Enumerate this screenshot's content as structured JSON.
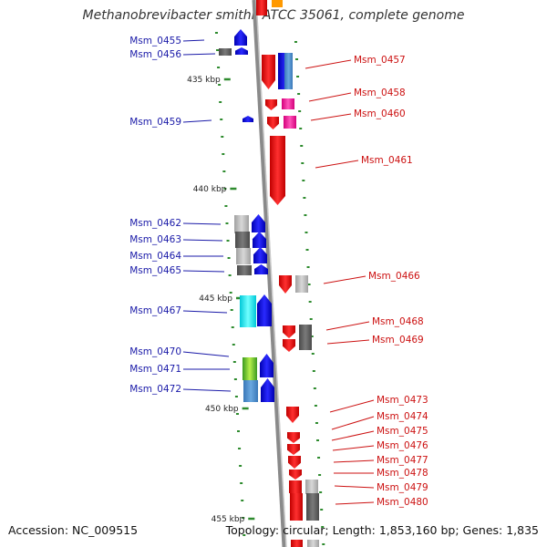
{
  "title": "Methanobrevibacter smithii ATCC 35061, complete genome",
  "accession": "Accession: NC_009515",
  "topology": "Topology: circular; Length: 1,853,160 bp; Genes: 1,835",
  "colors": {
    "backbone": "#8a8a8a",
    "forward": "#e41a1a",
    "reverse": "#1111dd",
    "tick": "#2e8b2e",
    "left_label": "#1a1aa8",
    "right_label": "#cc1111"
  },
  "ticks": [
    "435 kbp",
    "440 kbp",
    "445 kbp",
    "450 kbp",
    "455 kbp"
  ],
  "left_labels": [
    "Msm_0455",
    "Msm_0456",
    "Msm_0459",
    "Msm_0462",
    "Msm_0463",
    "Msm_0464",
    "Msm_0465",
    "Msm_0467",
    "Msm_0470",
    "Msm_0471",
    "Msm_0472"
  ],
  "right_labels": [
    "Msm_0457",
    "Msm_0458",
    "Msm_0460",
    "Msm_0461",
    "Msm_0466",
    "Msm_0468",
    "Msm_0469",
    "Msm_0473",
    "Msm_0474",
    "Msm_0475",
    "Msm_0476",
    "Msm_0477",
    "Msm_0478",
    "Msm_0479",
    "Msm_0480"
  ]
}
